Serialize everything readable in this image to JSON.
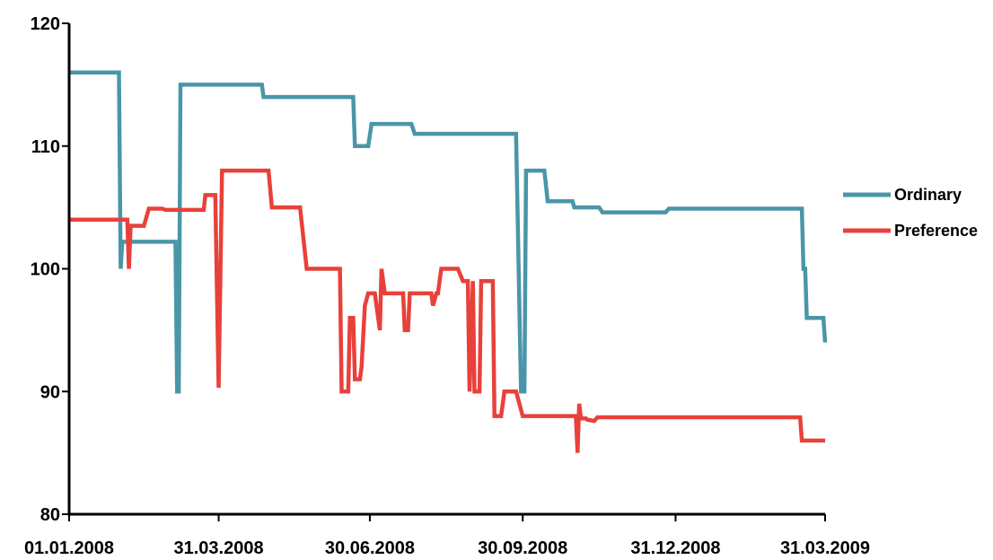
{
  "chart_data": {
    "type": "line",
    "title": "",
    "xlabel": "",
    "ylabel": "",
    "ylim": [
      80,
      120
    ],
    "y_ticks": [
      80,
      90,
      100,
      110,
      120
    ],
    "x_range": [
      "2008-01-01",
      "2009-03-31"
    ],
    "x_ticks": [
      "01.01.2008",
      "31.03.2008",
      "30.06.2008",
      "30.09.2008",
      "31.12.2008",
      "31.03.2009"
    ],
    "x_tick_dates": [
      "2008-01-01",
      "2008-03-31",
      "2008-06-30",
      "2008-09-30",
      "2008-12-31",
      "2009-03-31"
    ],
    "grid": false,
    "legend": {
      "position": "right"
    },
    "series": [
      {
        "name": "Ordinary",
        "color": "#4a96a8",
        "points": [
          [
            "2008-01-01",
            116
          ],
          [
            "2008-01-31",
            116
          ],
          [
            "2008-02-01",
            100
          ],
          [
            "2008-02-02",
            102.2
          ],
          [
            "2008-03-05",
            102.2
          ],
          [
            "2008-03-06",
            90
          ],
          [
            "2008-03-07",
            90
          ],
          [
            "2008-03-08",
            115
          ],
          [
            "2008-04-26",
            115
          ],
          [
            "2008-04-27",
            114
          ],
          [
            "2008-06-20",
            114
          ],
          [
            "2008-06-21",
            110
          ],
          [
            "2008-06-29",
            110
          ],
          [
            "2008-07-01",
            111.8
          ],
          [
            "2008-07-25",
            111.8
          ],
          [
            "2008-07-27",
            111
          ],
          [
            "2008-09-26",
            111
          ],
          [
            "2008-09-29",
            90
          ],
          [
            "2008-10-01",
            90
          ],
          [
            "2008-10-02",
            108
          ],
          [
            "2008-10-13",
            108
          ],
          [
            "2008-10-15",
            105.5
          ],
          [
            "2008-10-30",
            105.5
          ],
          [
            "2008-10-31",
            105
          ],
          [
            "2008-11-15",
            105
          ],
          [
            "2008-11-17",
            104.6
          ],
          [
            "2008-12-25",
            104.6
          ],
          [
            "2008-12-27",
            104.9
          ],
          [
            "2009-03-17",
            104.9
          ],
          [
            "2009-03-18",
            100
          ],
          [
            "2009-03-19",
            100
          ],
          [
            "2009-03-20",
            96
          ],
          [
            "2009-03-30",
            96
          ],
          [
            "2009-03-31",
            94
          ]
        ]
      },
      {
        "name": "Preference",
        "color": "#e8413b",
        "points": [
          [
            "2008-01-01",
            104
          ],
          [
            "2008-02-05",
            104
          ],
          [
            "2008-02-06",
            100
          ],
          [
            "2008-02-07",
            103.5
          ],
          [
            "2008-02-15",
            103.5
          ],
          [
            "2008-02-18",
            104.9
          ],
          [
            "2008-02-26",
            104.9
          ],
          [
            "2008-02-28",
            104.8
          ],
          [
            "2008-03-22",
            104.8
          ],
          [
            "2008-03-23",
            106
          ],
          [
            "2008-03-29",
            106
          ],
          [
            "2008-03-31",
            90.3
          ],
          [
            "2008-04-02",
            108
          ],
          [
            "2008-04-30",
            108
          ],
          [
            "2008-05-02",
            105
          ],
          [
            "2008-05-19",
            105
          ],
          [
            "2008-05-23",
            100
          ],
          [
            "2008-06-12",
            100
          ],
          [
            "2008-06-13",
            90
          ],
          [
            "2008-06-17",
            90
          ],
          [
            "2008-06-18",
            96
          ],
          [
            "2008-06-20",
            96
          ],
          [
            "2008-06-21",
            91
          ],
          [
            "2008-06-24",
            91
          ],
          [
            "2008-06-25",
            92
          ],
          [
            "2008-06-27",
            97
          ],
          [
            "2008-06-29",
            98
          ],
          [
            "2008-07-03",
            98
          ],
          [
            "2008-07-06",
            95
          ],
          [
            "2008-07-07",
            100
          ],
          [
            "2008-07-09",
            98
          ],
          [
            "2008-07-20",
            98
          ],
          [
            "2008-07-21",
            95
          ],
          [
            "2008-07-23",
            95
          ],
          [
            "2008-07-24",
            98
          ],
          [
            "2008-08-06",
            98
          ],
          [
            "2008-08-07",
            97
          ],
          [
            "2008-08-09",
            98
          ],
          [
            "2008-08-10",
            98
          ],
          [
            "2008-08-12",
            100
          ],
          [
            "2008-08-20",
            100
          ],
          [
            "2008-08-22",
            100
          ],
          [
            "2008-08-25",
            99
          ],
          [
            "2008-08-28",
            99
          ],
          [
            "2008-08-29",
            90
          ],
          [
            "2008-08-31",
            99
          ],
          [
            "2008-09-01",
            90
          ],
          [
            "2008-09-04",
            90
          ],
          [
            "2008-09-05",
            99
          ],
          [
            "2008-09-12",
            99
          ],
          [
            "2008-09-13",
            88
          ],
          [
            "2008-09-17",
            88
          ],
          [
            "2008-09-19",
            90
          ],
          [
            "2008-09-26",
            90
          ],
          [
            "2008-09-28",
            89
          ],
          [
            "2008-09-30",
            88
          ],
          [
            "2008-10-04",
            88
          ],
          [
            "2008-11-01",
            88
          ],
          [
            "2008-11-02",
            85
          ],
          [
            "2008-11-03",
            89
          ],
          [
            "2008-11-04",
            87.8
          ],
          [
            "2008-11-07",
            87.8
          ],
          [
            "2008-11-08",
            87.7
          ],
          [
            "2008-11-12",
            87.6
          ],
          [
            "2008-11-14",
            87.9
          ],
          [
            "2009-03-16",
            87.9
          ],
          [
            "2009-03-17",
            86
          ],
          [
            "2009-03-31",
            86
          ]
        ]
      }
    ]
  }
}
